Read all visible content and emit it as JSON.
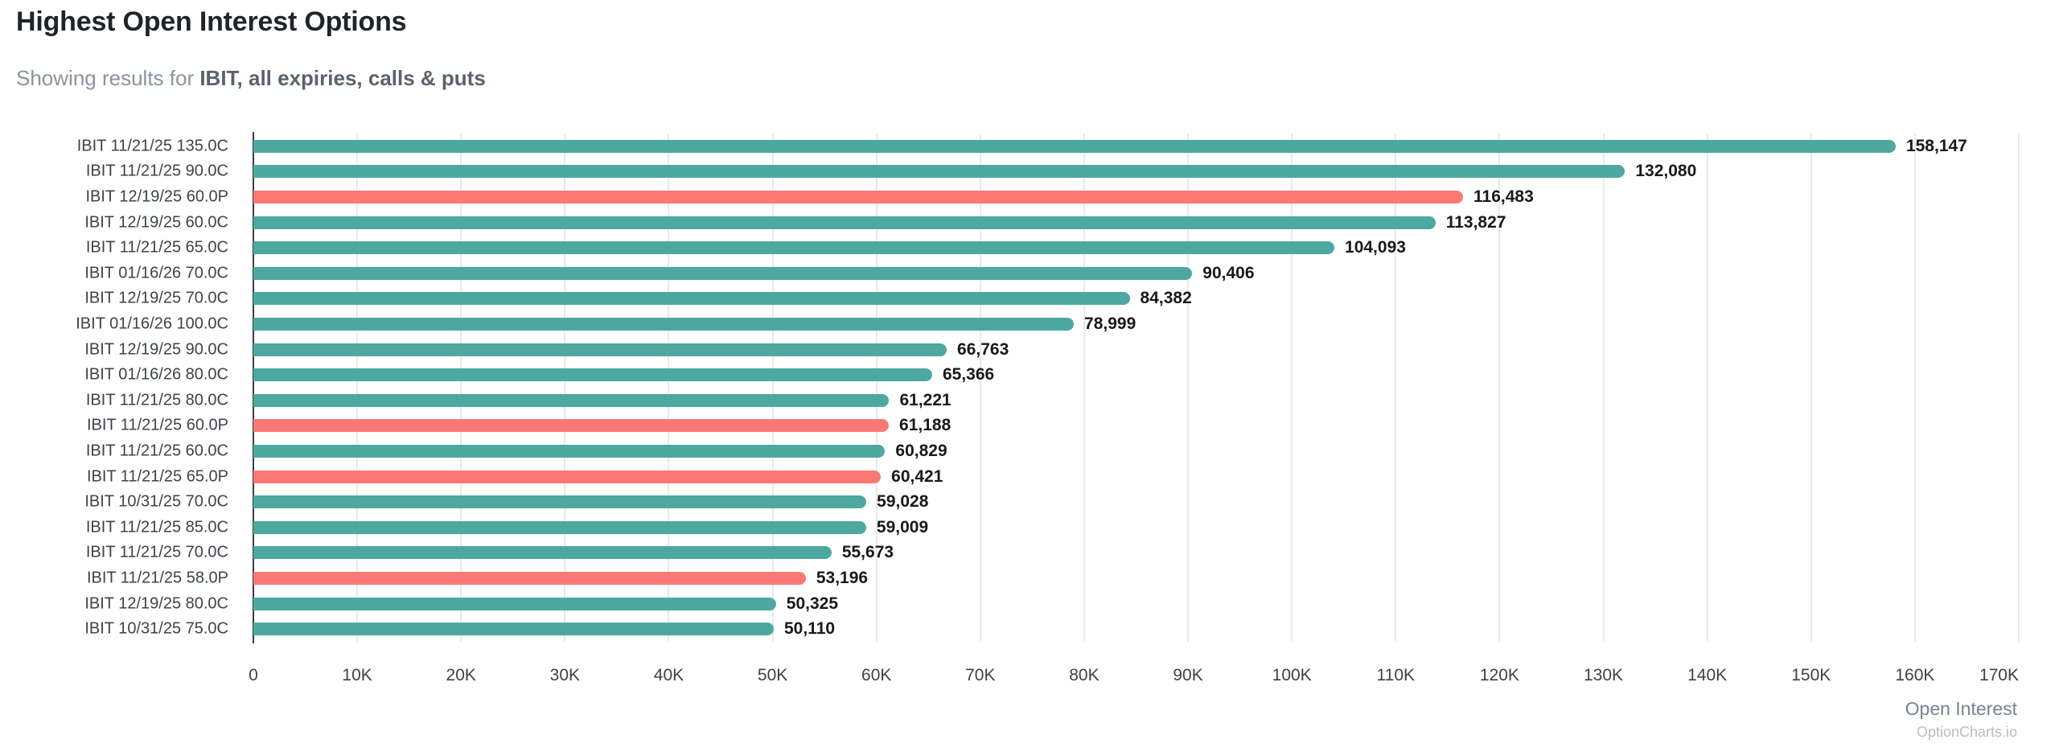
{
  "header": {
    "title": "Highest Open Interest Options",
    "subtitle_prefix": "Showing results for ",
    "subtitle_filter": "IBIT, all expiries, calls & puts"
  },
  "chart_data": {
    "type": "bar",
    "orientation": "horizontal",
    "title": "Highest Open Interest Options",
    "xlabel": "Open Interest",
    "ylabel": "",
    "xlim": [
      0,
      170000
    ],
    "x_ticks": [
      "0",
      "10K",
      "20K",
      "30K",
      "40K",
      "50K",
      "60K",
      "70K",
      "80K",
      "90K",
      "100K",
      "110K",
      "120K",
      "130K",
      "140K",
      "150K",
      "160K",
      "170K"
    ],
    "grid": true,
    "legend": "none",
    "bar_colors": {
      "call": "#4da8a0",
      "put": "#fc7874"
    },
    "rows": [
      {
        "contract": "IBIT 11/21/25 135.0C",
        "type": "call",
        "open_interest": 158147,
        "label": "158,147"
      },
      {
        "contract": "IBIT 11/21/25 90.0C",
        "type": "call",
        "open_interest": 132080,
        "label": "132,080"
      },
      {
        "contract": "IBIT 12/19/25 60.0P",
        "type": "put",
        "open_interest": 116483,
        "label": "116,483"
      },
      {
        "contract": "IBIT 12/19/25 60.0C",
        "type": "call",
        "open_interest": 113827,
        "label": "113,827"
      },
      {
        "contract": "IBIT 11/21/25 65.0C",
        "type": "call",
        "open_interest": 104093,
        "label": "104,093"
      },
      {
        "contract": "IBIT 01/16/26 70.0C",
        "type": "call",
        "open_interest": 90406,
        "label": "90,406"
      },
      {
        "contract": "IBIT 12/19/25 70.0C",
        "type": "call",
        "open_interest": 84382,
        "label": "84,382"
      },
      {
        "contract": "IBIT 01/16/26 100.0C",
        "type": "call",
        "open_interest": 78999,
        "label": "78,999"
      },
      {
        "contract": "IBIT 12/19/25 90.0C",
        "type": "call",
        "open_interest": 66763,
        "label": "66,763"
      },
      {
        "contract": "IBIT 01/16/26 80.0C",
        "type": "call",
        "open_interest": 65366,
        "label": "65,366"
      },
      {
        "contract": "IBIT 11/21/25 80.0C",
        "type": "call",
        "open_interest": 61221,
        "label": "61,221"
      },
      {
        "contract": "IBIT 11/21/25 60.0P",
        "type": "put",
        "open_interest": 61188,
        "label": "61,188"
      },
      {
        "contract": "IBIT 11/21/25 60.0C",
        "type": "call",
        "open_interest": 60829,
        "label": "60,829"
      },
      {
        "contract": "IBIT 11/21/25 65.0P",
        "type": "put",
        "open_interest": 60421,
        "label": "60,421"
      },
      {
        "contract": "IBIT 10/31/25 70.0C",
        "type": "call",
        "open_interest": 59028,
        "label": "59,028"
      },
      {
        "contract": "IBIT 11/21/25 85.0C",
        "type": "call",
        "open_interest": 59009,
        "label": "59,009"
      },
      {
        "contract": "IBIT 11/21/25 70.0C",
        "type": "call",
        "open_interest": 55673,
        "label": "55,673"
      },
      {
        "contract": "IBIT 11/21/25 58.0P",
        "type": "put",
        "open_interest": 53196,
        "label": "53,196"
      },
      {
        "contract": "IBIT 12/19/25 80.0C",
        "type": "call",
        "open_interest": 50325,
        "label": "50,325"
      },
      {
        "contract": "IBIT 10/31/25 75.0C",
        "type": "call",
        "open_interest": 50110,
        "label": "50,110"
      }
    ]
  },
  "footer": {
    "watermark": "OptionCharts.io"
  }
}
